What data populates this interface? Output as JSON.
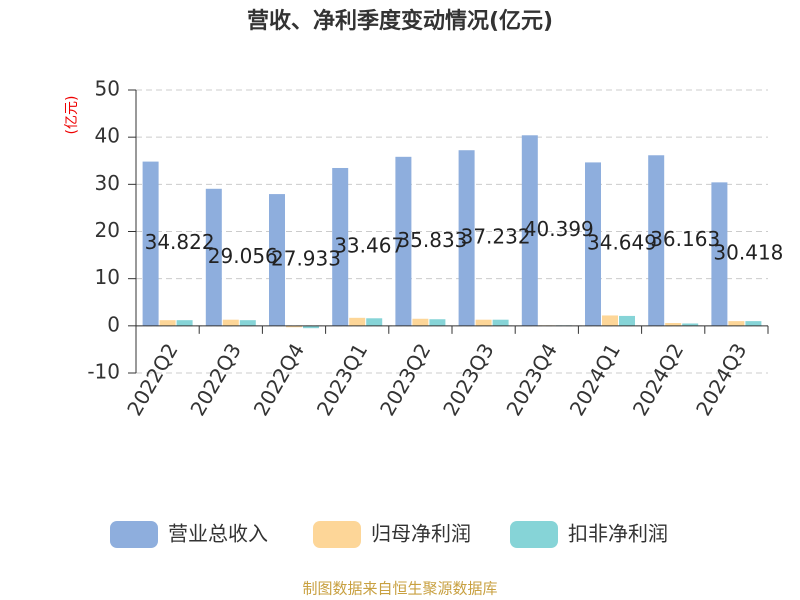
{
  "chart_data": {
    "type": "bar",
    "title": "营收、净利季度变动情况(亿元)",
    "y_label": "(亿元)",
    "source": "制图数据来自恒生聚源数据库",
    "categories": [
      "2022Q2",
      "2022Q3",
      "2022Q4",
      "2023Q1",
      "2023Q2",
      "2023Q3",
      "2023Q4",
      "2024Q1",
      "2024Q2",
      "2024Q3"
    ],
    "series": [
      {
        "name": "营业总收入",
        "color": "#8eaedd",
        "values": [
          34.822,
          29.056,
          27.933,
          33.467,
          35.833,
          37.232,
          40.399,
          34.649,
          36.163,
          30.418
        ],
        "data_labels": true
      },
      {
        "name": "归母净利润",
        "color": "#fdd698",
        "values": [
          1.2,
          1.3,
          -0.3,
          1.7,
          1.5,
          1.3,
          0.1,
          2.2,
          0.6,
          1.0
        ]
      },
      {
        "name": "扣非净利润",
        "color": "#86d4d7",
        "values": [
          1.2,
          1.2,
          -0.5,
          1.6,
          1.4,
          1.3,
          0.1,
          2.1,
          0.5,
          1.0
        ]
      }
    ],
    "ylim": [
      -10,
      50
    ],
    "yticks": [
      -10,
      0,
      10,
      20,
      30,
      40,
      50
    ],
    "grid": true,
    "legend": "bottom"
  }
}
